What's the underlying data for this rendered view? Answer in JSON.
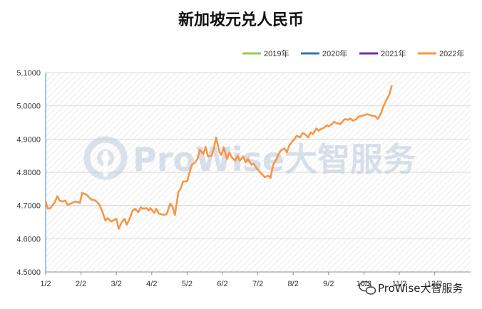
{
  "chart_data": {
    "type": "line",
    "title": "新加坡元兑人民币",
    "xlabel": "",
    "ylabel": "",
    "ylim": [
      4.5,
      5.1
    ],
    "y_ticks": [
      "4.5000",
      "4.6000",
      "4.7000",
      "4.8000",
      "4.9000",
      "5.0000",
      "5.1000"
    ],
    "x_ticks": [
      "1/2",
      "2/2",
      "3/2",
      "4/2",
      "5/2",
      "6/2",
      "7/2",
      "8/2",
      "9/2",
      "10/2",
      "11/2",
      "12/2"
    ],
    "legend_position": "top-right",
    "grid": true,
    "series": [
      {
        "name": "2019年",
        "color": "#92d050",
        "x": [],
        "values": []
      },
      {
        "name": "2020年",
        "color": "#2e75b6",
        "x": [],
        "values": []
      },
      {
        "name": "2021年",
        "color": "#7030a0",
        "x": [],
        "values": []
      },
      {
        "name": "2022年",
        "color": "#f79646",
        "x": [
          "1/2",
          "1/4",
          "1/6",
          "1/10",
          "1/12",
          "1/14",
          "1/17",
          "1/19",
          "1/21",
          "1/24",
          "1/26",
          "1/28",
          "2/1",
          "2/3",
          "2/7",
          "2/9",
          "2/11",
          "2/14",
          "2/16",
          "2/18",
          "2/21",
          "2/23",
          "2/25",
          "2/28",
          "3/2",
          "3/4",
          "3/7",
          "3/9",
          "3/11",
          "3/14",
          "3/16",
          "3/18",
          "3/21",
          "3/23",
          "3/25",
          "3/28",
          "3/30",
          "4/1",
          "4/4",
          "4/6",
          "4/8",
          "4/11",
          "4/13",
          "4/15",
          "4/18",
          "4/20",
          "4/22",
          "4/25",
          "4/27",
          "4/29",
          "5/2",
          "5/4",
          "5/6",
          "5/9",
          "5/11",
          "5/13",
          "5/16",
          "5/18",
          "5/20",
          "5/23",
          "5/25",
          "5/27",
          "5/30",
          "6/1",
          "6/3",
          "6/6",
          "6/8",
          "6/10",
          "6/13",
          "6/15",
          "6/17",
          "6/20",
          "6/22",
          "6/24",
          "6/27",
          "6/29",
          "7/1",
          "7/4",
          "7/6",
          "7/8",
          "7/11",
          "7/13",
          "7/15",
          "7/18",
          "7/20",
          "7/22",
          "7/25",
          "7/27",
          "7/29",
          "8/1",
          "8/3",
          "8/5",
          "8/8",
          "8/10",
          "8/12",
          "8/15",
          "8/17",
          "8/19",
          "8/22",
          "8/24",
          "8/26",
          "8/29",
          "8/31",
          "9/2",
          "9/5",
          "9/7",
          "9/9",
          "9/12",
          "9/14",
          "9/16",
          "9/19",
          "9/21",
          "9/23",
          "9/26",
          "9/28",
          "9/30",
          "10/3",
          "10/5",
          "10/7",
          "10/10",
          "10/12",
          "10/14",
          "10/17",
          "10/19",
          "10/21",
          "10/24",
          "10/26"
        ],
        "values": [
          4.712,
          4.69,
          4.692,
          4.71,
          4.728,
          4.715,
          4.712,
          4.715,
          4.702,
          4.706,
          4.71,
          4.712,
          4.708,
          4.738,
          4.732,
          4.724,
          4.718,
          4.716,
          4.71,
          4.702,
          4.676,
          4.655,
          4.662,
          4.652,
          4.66,
          4.63,
          4.652,
          4.66,
          4.642,
          4.665,
          4.685,
          4.69,
          4.68,
          4.695,
          4.69,
          4.692,
          4.685,
          4.692,
          4.678,
          4.69,
          4.676,
          4.673,
          4.672,
          4.675,
          4.706,
          4.695,
          4.672,
          4.74,
          4.752,
          4.772,
          4.773,
          4.798,
          4.822,
          4.83,
          4.84,
          4.868,
          4.855,
          4.876,
          4.848,
          4.85,
          4.87,
          4.905,
          4.86,
          4.852,
          4.875,
          4.84,
          4.86,
          4.845,
          4.835,
          4.85,
          4.835,
          4.848,
          4.83,
          4.84,
          4.823,
          4.825,
          4.812,
          4.8,
          4.793,
          4.785,
          4.79,
          4.783,
          4.82,
          4.84,
          4.855,
          4.866,
          4.872,
          4.86,
          4.88,
          4.892,
          4.9,
          4.91,
          4.905,
          4.918,
          4.915,
          4.905,
          4.92,
          4.915,
          4.932,
          4.925,
          4.93,
          4.935,
          4.942,
          4.938,
          4.945,
          4.952,
          4.948,
          4.945,
          4.953,
          4.96,
          4.958,
          4.962,
          4.955,
          4.96,
          4.968,
          4.97,
          4.972,
          4.975,
          4.972,
          4.97,
          4.968,
          4.96,
          4.98,
          5.0,
          5.015,
          5.035,
          5.06
        ]
      }
    ]
  },
  "watermark": {
    "text": "ProWise大智服务",
    "icon": "prowise-logo-icon"
  },
  "source_badge": {
    "text": "ProWise大智服务",
    "icon": "wechat-icon"
  }
}
